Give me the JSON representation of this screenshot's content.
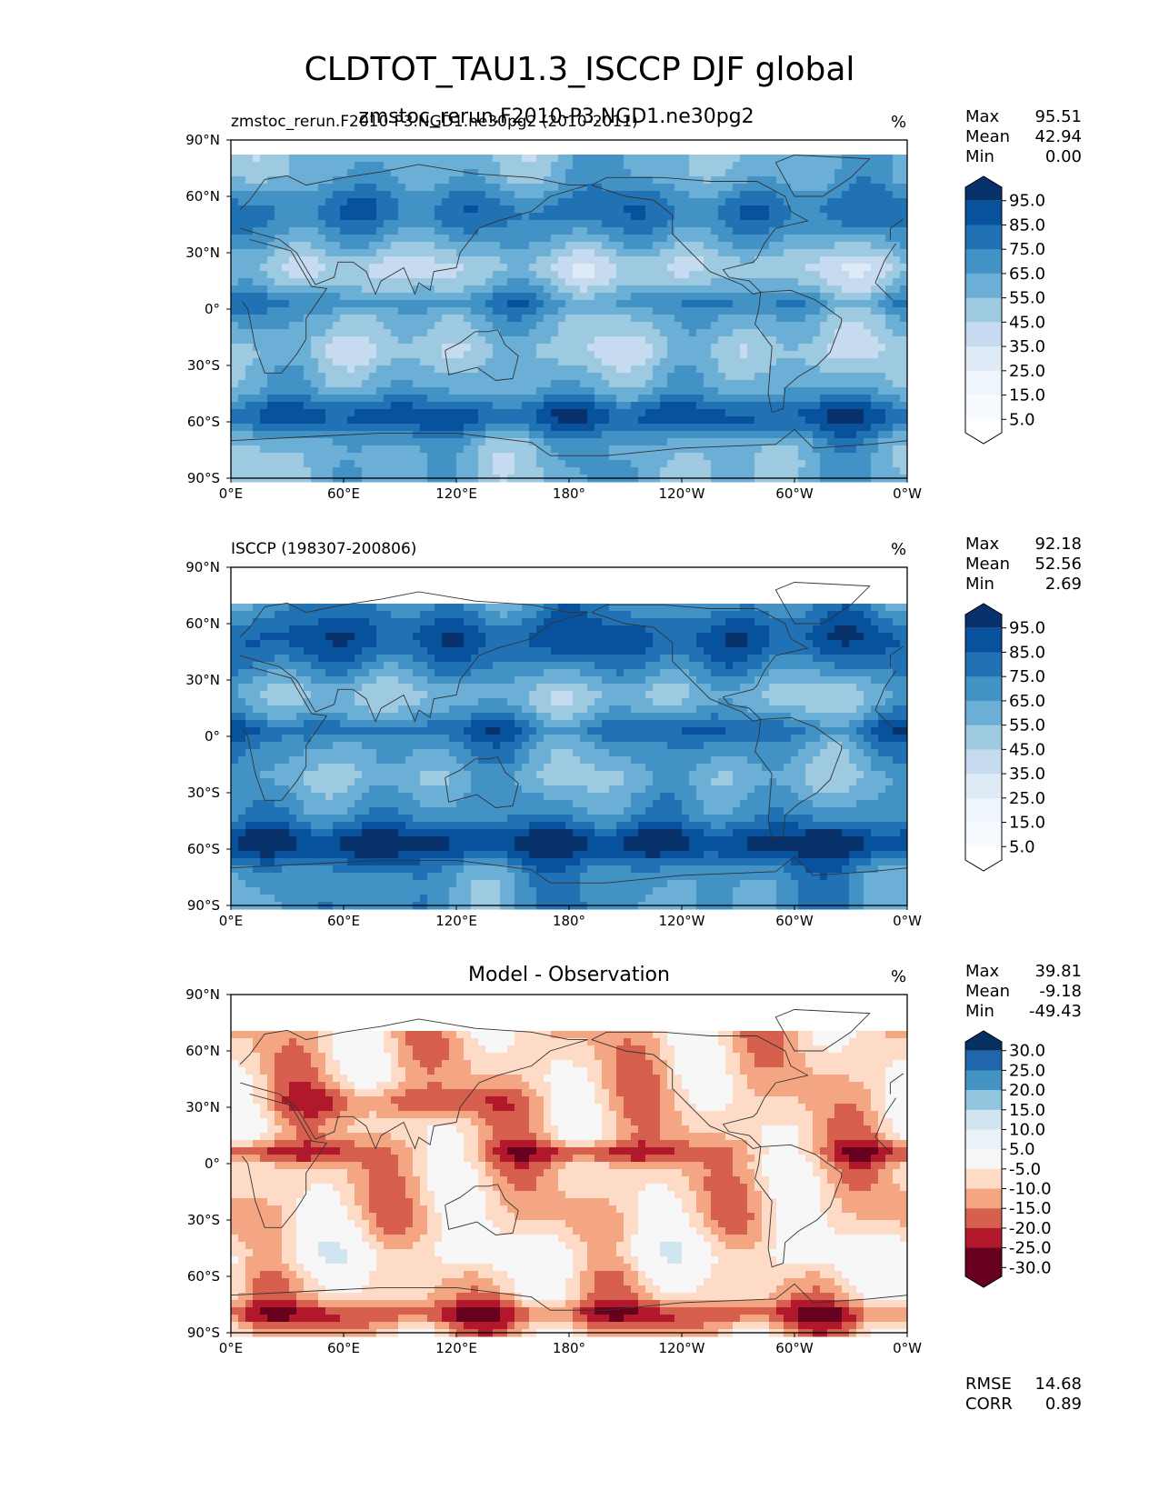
{
  "figure": {
    "title": "CLDTOT_TAU1.3_ISCCP DJF global",
    "overlapping_subtitle_a": "zmstoc_rerun.F2010-P3.NGD1.ne30pg2",
    "overlapping_subtitle_b": "zmstoc_rerun.F2010-P3.NGD1.ne30pg2 (2010-2011)"
  },
  "colors": {
    "blues": [
      "#f7fbff",
      "#deebf7",
      "#c6dbef",
      "#9ecae1",
      "#6baed6",
      "#4292c6",
      "#2171b5",
      "#08519c",
      "#08306b"
    ],
    "rdbu": [
      "#67001f",
      "#b2182b",
      "#d6604d",
      "#f4a582",
      "#fddbc7",
      "#f7f7f7",
      "#d1e5f0",
      "#92c5de",
      "#4393c3",
      "#2166ac",
      "#053061"
    ],
    "land_outline": "#333333"
  },
  "panels": [
    {
      "title_left": "zmstoc_rerun.F2010-P3.NGD1.ne30pg2 (2010-2011)",
      "title_center": "",
      "unit": "%",
      "stats": [
        {
          "label": "Max",
          "value": "95.51"
        },
        {
          "label": "Mean",
          "value": "42.94"
        },
        {
          "label": "Min",
          "value": "0.00"
        }
      ],
      "colorbar_ticks": [
        "95.0",
        "85.0",
        "75.0",
        "65.0",
        "55.0",
        "45.0",
        "35.0",
        "25.0",
        "15.0",
        "5.0"
      ],
      "palette": "blues",
      "extra_stats": []
    },
    {
      "title_left": "ISCCP (198307-200806)",
      "title_center": "",
      "unit": "%",
      "stats": [
        {
          "label": "Max",
          "value": "92.18"
        },
        {
          "label": "Mean",
          "value": "52.56"
        },
        {
          "label": "Min",
          "value": "2.69"
        }
      ],
      "colorbar_ticks": [
        "95.0",
        "85.0",
        "75.0",
        "65.0",
        "55.0",
        "45.0",
        "35.0",
        "25.0",
        "15.0",
        "5.0"
      ],
      "palette": "blues",
      "extra_stats": []
    },
    {
      "title_left": "",
      "title_center": "Model - Observation",
      "unit": "%",
      "stats": [
        {
          "label": "Max",
          "value": "39.81"
        },
        {
          "label": "Mean",
          "value": "-9.18"
        },
        {
          "label": "Min",
          "value": "-49.43"
        }
      ],
      "colorbar_ticks": [
        "30.0",
        "25.0",
        "20.0",
        "15.0",
        "10.0",
        "5.0",
        "-5.0",
        "-10.0",
        "-15.0",
        "-20.0",
        "-25.0",
        "-30.0"
      ],
      "palette": "rdbu",
      "extra_stats": [
        {
          "label": "RMSE",
          "value": "14.68"
        },
        {
          "label": "CORR",
          "value": "0.89"
        }
      ]
    }
  ],
  "chart_data": [
    {
      "type": "heatmap",
      "title": "zmstoc_rerun.F2010-P3.NGD1.ne30pg2 (2010-2011)",
      "variable": "CLDTOT_TAU1.3_ISCCP DJF global",
      "unit": "%",
      "x_ticks": [
        "0°E",
        "60°E",
        "120°E",
        "180°",
        "120°W",
        "60°W",
        "0°W"
      ],
      "y_ticks": [
        "90°N",
        "60°N",
        "30°N",
        "0°",
        "30°S",
        "60°S",
        "90°S"
      ],
      "xlim": [
        0,
        360
      ],
      "ylim": [
        -90,
        90
      ],
      "levels": [
        5,
        15,
        25,
        35,
        45,
        55,
        65,
        75,
        85,
        95
      ],
      "max": 95.51,
      "mean": 42.94,
      "min": 0.0
    },
    {
      "type": "heatmap",
      "title": "ISCCP (198307-200806)",
      "unit": "%",
      "x_ticks": [
        "0°E",
        "60°E",
        "120°E",
        "180°",
        "120°W",
        "60°W",
        "0°W"
      ],
      "y_ticks": [
        "90°N",
        "60°N",
        "30°N",
        "0°",
        "30°S",
        "60°S",
        "90°S"
      ],
      "xlim": [
        0,
        360
      ],
      "ylim": [
        -90,
        90
      ],
      "levels": [
        5,
        15,
        25,
        35,
        45,
        55,
        65,
        75,
        85,
        95
      ],
      "max": 92.18,
      "mean": 52.56,
      "min": 2.69
    },
    {
      "type": "heatmap",
      "title": "Model - Observation",
      "unit": "%",
      "x_ticks": [
        "0°E",
        "60°E",
        "120°E",
        "180°",
        "120°W",
        "60°W",
        "0°W"
      ],
      "y_ticks": [
        "90°N",
        "60°N",
        "30°N",
        "0°",
        "30°S",
        "60°S",
        "90°S"
      ],
      "xlim": [
        0,
        360
      ],
      "ylim": [
        -90,
        90
      ],
      "levels": [
        -30,
        -25,
        -20,
        -15,
        -10,
        -5,
        5,
        10,
        15,
        20,
        25,
        30
      ],
      "max": 39.81,
      "mean": -9.18,
      "min": -49.43,
      "rmse": 14.68,
      "corr": 0.89
    }
  ]
}
